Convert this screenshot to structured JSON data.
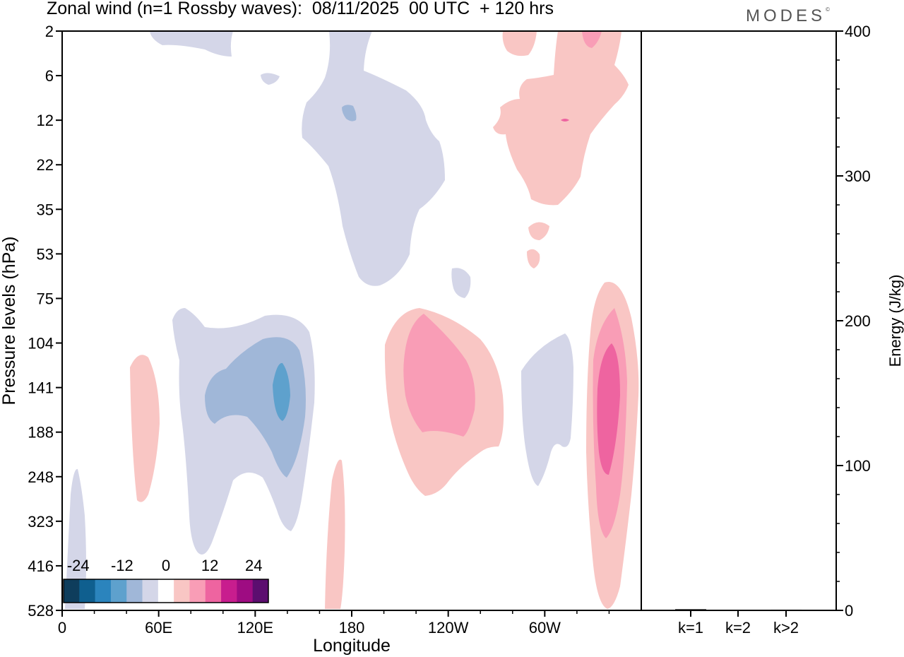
{
  "header": {
    "title": "Zonal wind (n=1 Rossby waves):  08/11/2025  00 UTC  + 120 hrs",
    "logo": "MODES",
    "logo_mark": "©"
  },
  "chart_data": [
    {
      "type": "heatmap",
      "title": "Zonal wind (n=1 Rossby waves):  08/11/2025  00 UTC  + 120 hrs",
      "xlabel": "Longitude",
      "ylabel": "Pressure levels (hPa)",
      "x_ticks": [
        "0",
        "60E",
        "120E",
        "180",
        "120W",
        "60W"
      ],
      "x_tick_positions_deg": [
        0,
        60,
        120,
        180,
        240,
        300
      ],
      "xlim": [
        0,
        360
      ],
      "y_ticks": [
        "2",
        "6",
        "12",
        "22",
        "35",
        "53",
        "75",
        "104",
        "141",
        "188",
        "248",
        "323",
        "416",
        "528"
      ],
      "colorbar": {
        "labels": [
          "-24",
          "-12",
          "0",
          "12",
          "24"
        ],
        "label_levels": [
          -24,
          -12,
          0,
          12,
          24
        ],
        "levels": [
          -28,
          -24,
          -20,
          -16,
          -12,
          -8,
          -4,
          4,
          8,
          12,
          16,
          20,
          24,
          28
        ],
        "colors": [
          "#0e3d5c",
          "#0f5f8f",
          "#2b84bd",
          "#5ea1cd",
          "#a0b7d8",
          "#d4d6e8",
          "#ffffff",
          "#f9c6c4",
          "#f99db6",
          "#ee64a0",
          "#c81d8e",
          "#9e0c82",
          "#5c0e6f"
        ]
      }
    },
    {
      "type": "bar",
      "categories": [
        "k=1",
        "k=2",
        "k>2"
      ],
      "values": [
        0.8,
        0.3,
        0.5
      ],
      "ylabel": "Energy (J/kg)",
      "ylim": [
        0,
        400
      ],
      "y_ticks": [
        "0",
        "100",
        "200",
        "300",
        "400"
      ]
    }
  ]
}
